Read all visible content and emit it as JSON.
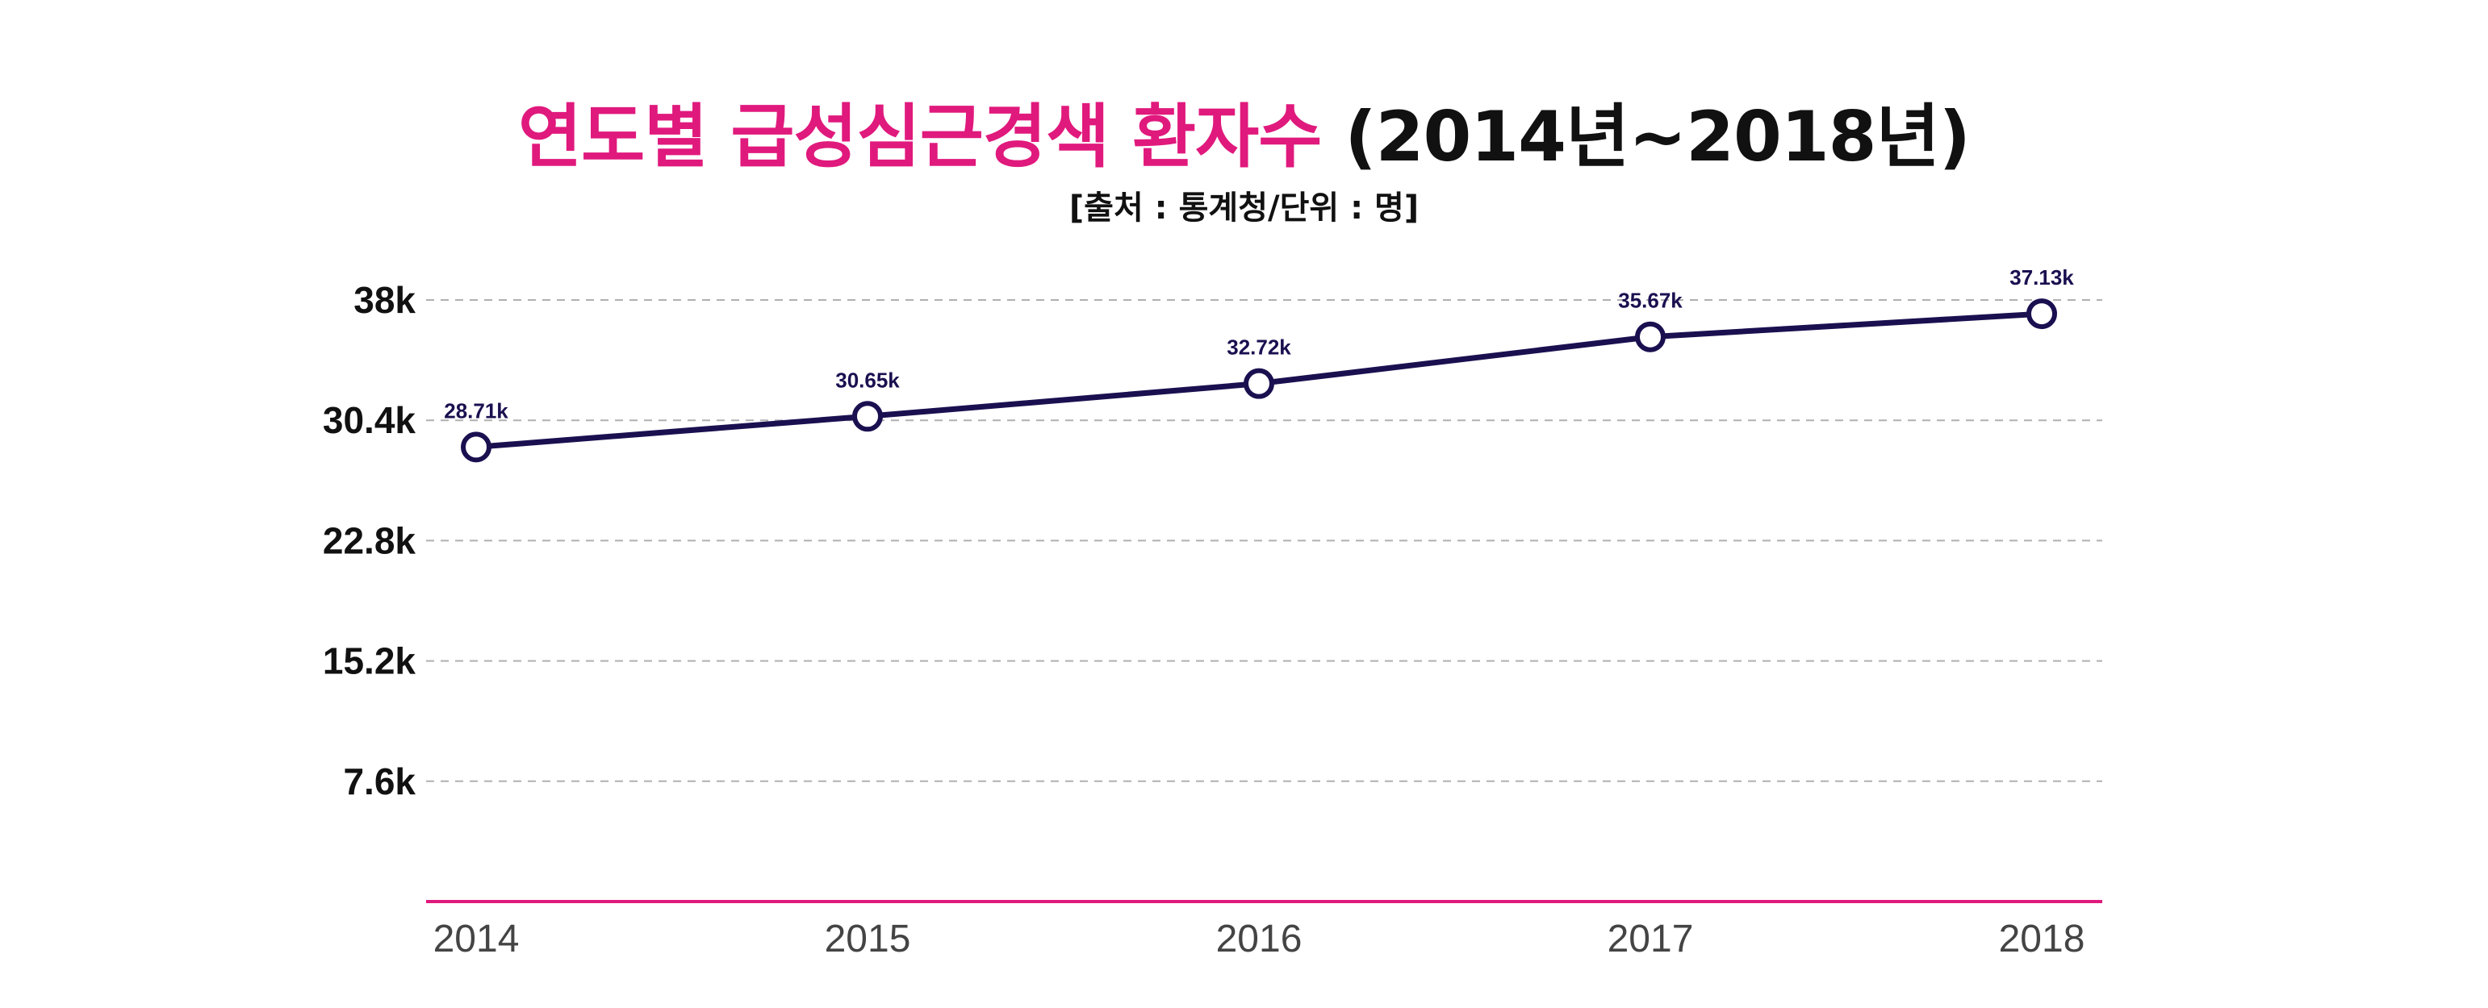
{
  "colors": {
    "accent": "#e0197d",
    "line": "#1a1050",
    "title_dark": "#111111",
    "grid": "#b0b0b0"
  },
  "chart_data": {
    "type": "line",
    "title_highlight": "연도별 급성심근경색 환자수",
    "title_rest": "(2014년~2018년)",
    "subtitle": "[출처 : 통계청/단위 : 명]",
    "xlabel": "",
    "ylabel": "",
    "categories": [
      "2014",
      "2015",
      "2016",
      "2017",
      "2018"
    ],
    "series": [
      {
        "values": [
          28710,
          30650,
          32720,
          35670,
          37130
        ],
        "labels": [
          "28.71k",
          "30.65k",
          "32.72k",
          "35.67k",
          "37.13k"
        ]
      }
    ],
    "yticks": [
      7600,
      15200,
      22800,
      30400,
      38000
    ],
    "ytick_labels": [
      "7.6k",
      "15.2k",
      "22.8k",
      "30.4k",
      "38k"
    ],
    "ylim": [
      0,
      38000
    ],
    "grid": "horizontal dashed",
    "legend": "none"
  }
}
